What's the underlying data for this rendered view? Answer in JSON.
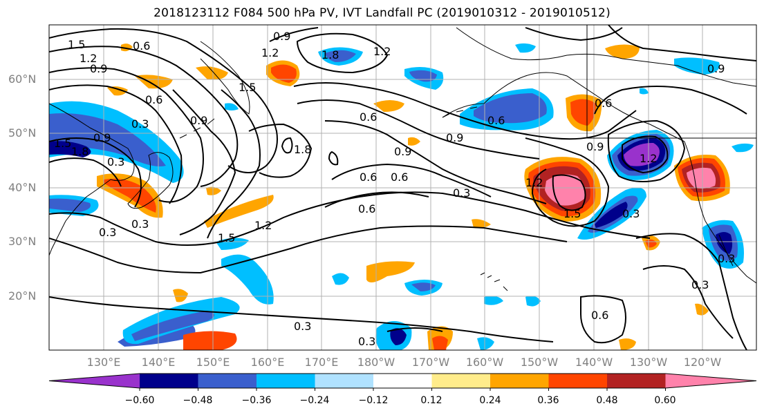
{
  "title": "2018123112 F084 500 hPa PV, IVT Landfall PC (2019010312 - 2019010512)",
  "lat_labels": [
    "60°N",
    "50°N",
    "40°N",
    "30°N",
    "20°N"
  ],
  "lon_labels": [
    "130°E",
    "140°E",
    "150°E",
    "160°E",
    "170°E",
    "180°W",
    "170°W",
    "160°W",
    "150°W",
    "140°W",
    "130°W",
    "120°W"
  ],
  "colorbar": {
    "colors": [
      "#9932cc",
      "#00008b",
      "#3a5fcd",
      "#00bfff",
      "#b0e2ff",
      "#ffffff",
      "#ffec8b",
      "#ffa500",
      "#ff4500",
      "#b22222",
      "#ff82ab"
    ],
    "ticks": [
      "−0.60",
      "−0.48",
      "−0.36",
      "−0.24",
      "−0.12",
      "0.12",
      "0.24",
      "0.36",
      "0.48",
      "0.60"
    ]
  },
  "contour_labels": [
    "1.5",
    "1.2",
    "0.9",
    "0.6",
    "1.2",
    "1.5",
    "0.9",
    "1.8",
    "1.2",
    "0.6",
    "0.3",
    "0.9",
    "1.5",
    "1.8",
    "0.9",
    "0.6",
    "1.8",
    "0.6",
    "0.9",
    "0.6",
    "0.9",
    "0.6",
    "0.3",
    "0.6",
    "1.2",
    "1.5",
    "0.3",
    "1.5",
    "0.3",
    "1.2",
    "0.9",
    "0.6",
    "0.9",
    "1.2",
    "0.3",
    "0.3",
    "0.3",
    "0.6",
    "0.3",
    "0.3",
    "0.3"
  ]
}
